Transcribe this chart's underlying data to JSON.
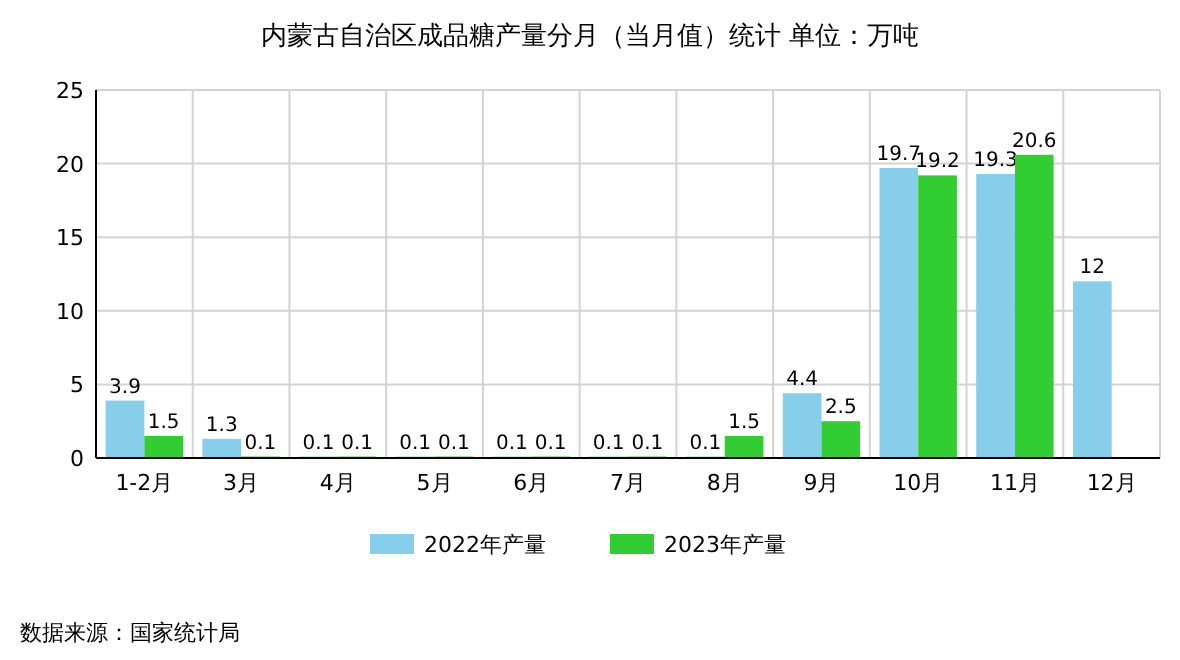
{
  "chart_data": {
    "type": "bar",
    "title": "内蒙古自治区成品糖产量分月（当月值）统计  单位：万吨",
    "categories": [
      "1-2月",
      "3月",
      "4月",
      "5月",
      "6月",
      "7月",
      "8月",
      "9月",
      "10月",
      "11月",
      "12月"
    ],
    "series": [
      {
        "name": "2022年产量",
        "color": "#87ceeb",
        "values": [
          3.9,
          1.3,
          0.1,
          0.1,
          0.1,
          0.1,
          0.1,
          4.4,
          19.7,
          19.3,
          12
        ]
      },
      {
        "name": "2023年产量",
        "color": "#32cd32",
        "values": [
          1.5,
          0.1,
          0.1,
          0.1,
          0.1,
          0.1,
          1.5,
          2.5,
          19.2,
          20.6,
          null
        ]
      }
    ],
    "ylim": [
      0,
      25
    ],
    "yticks": [
      0,
      5,
      10,
      15,
      20,
      25
    ],
    "grid": true,
    "legend": "bottom",
    "data_labels": true,
    "annotations": [
      "数据来源：国家统计局"
    ]
  }
}
